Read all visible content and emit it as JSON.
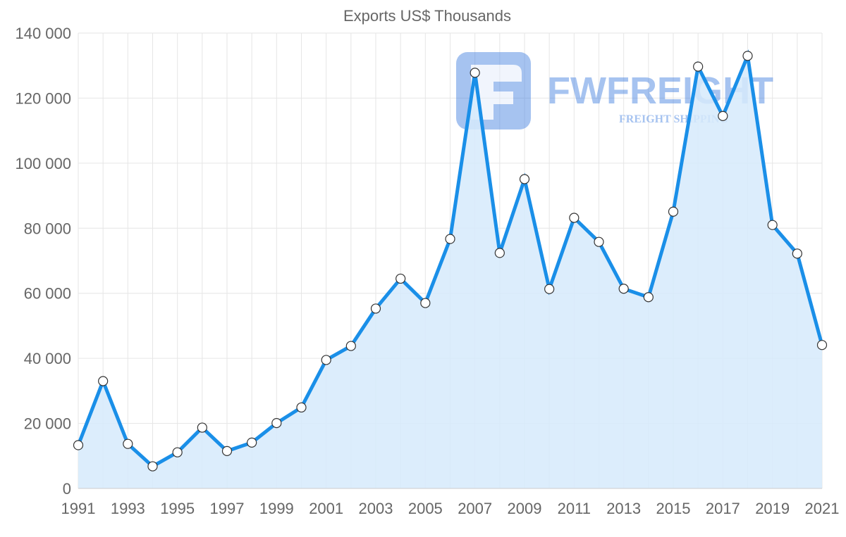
{
  "colors": {
    "line": "#1a8fe8",
    "fill": "#d6eafb",
    "point_fill": "#ffffff",
    "point_stroke": "#333333",
    "watermark": "#3b7be0"
  },
  "watermark": {
    "brand": "FWFREIGHT",
    "tagline": "FREIGHT SHIPPING",
    "icon": "fwfreight-logo-icon"
  },
  "chart_data": {
    "type": "area",
    "title": "Exports US$ Thousands",
    "xlabel": "",
    "ylabel": "",
    "ylim": [
      0,
      140000
    ],
    "y_ticks": [
      0,
      20000,
      40000,
      60000,
      80000,
      100000,
      120000,
      140000
    ],
    "y_tick_labels": [
      "0",
      "20 000",
      "40 000",
      "60 000",
      "80 000",
      "100 000",
      "120 000",
      "140 000"
    ],
    "x_tick_labels": [
      "1991",
      "1993",
      "1995",
      "1997",
      "1999",
      "2001",
      "2003",
      "2005",
      "2007",
      "2009",
      "2011",
      "2013",
      "2015",
      "2017",
      "2019",
      "2021"
    ],
    "grid": true,
    "legend": "none",
    "series": [
      {
        "name": "Exports",
        "x": [
          1991,
          1992,
          1993,
          1994,
          1995,
          1996,
          1997,
          1998,
          1999,
          2000,
          2001,
          2002,
          2003,
          2004,
          2005,
          2006,
          2007,
          2008,
          2009,
          2010,
          2011,
          2012,
          2013,
          2014,
          2015,
          2016,
          2017,
          2018,
          2019,
          2020,
          2021
        ],
        "values": [
          13300,
          33000,
          13700,
          6800,
          11100,
          18700,
          11500,
          14100,
          20100,
          24900,
          39500,
          43800,
          55300,
          64500,
          57000,
          76700,
          127800,
          72400,
          95100,
          61300,
          83200,
          75800,
          61400,
          58800,
          85100,
          129700,
          114500,
          133000,
          81000,
          72200,
          44100
        ]
      }
    ]
  }
}
